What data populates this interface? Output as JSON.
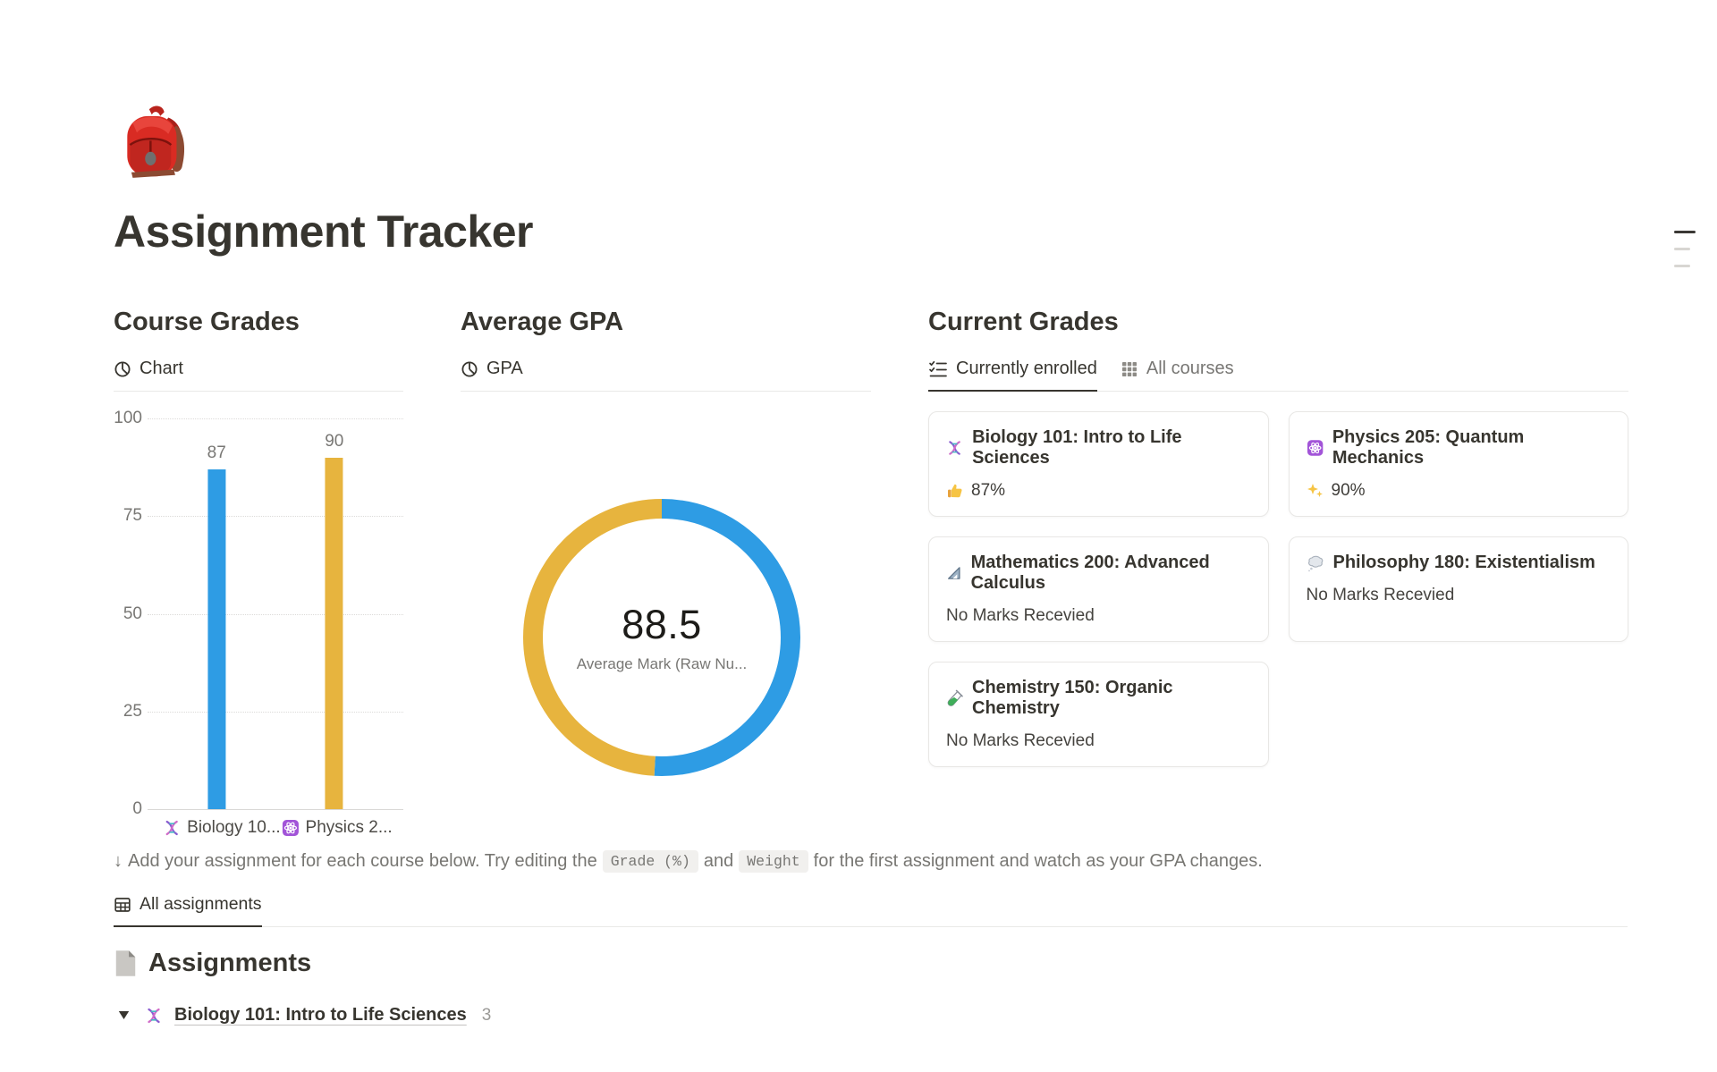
{
  "header": {
    "title": "Assignment Tracker",
    "icon": "red-backpack"
  },
  "course_grades": {
    "heading": "Course Grades",
    "tab_label": "Chart",
    "tab_icon": "pie-chart"
  },
  "average_gpa": {
    "heading": "Average GPA",
    "tab_label": "GPA",
    "tab_icon": "pie-chart"
  },
  "current_grades": {
    "heading": "Current Grades",
    "tabs": [
      {
        "label": "Currently enrolled",
        "icon": "checklist",
        "active": true
      },
      {
        "label": "All courses",
        "icon": "grid",
        "active": false
      }
    ],
    "cards": [
      {
        "icon": "dna",
        "title": "Biology 101: Intro to Life Sciences",
        "mark_icon": "thumbs-up",
        "mark": "87%"
      },
      {
        "icon": "atom",
        "title": "Physics 205: Quantum Mechanics",
        "mark_icon": "sparkles",
        "mark": "90%"
      },
      {
        "icon": "triangular-ruler",
        "title": "Mathematics 200: Advanced Calculus",
        "status": "No Marks Recevied"
      },
      {
        "icon": "thought-balloon",
        "title": "Philosophy 180: Existentialism",
        "status": "No Marks Recevied"
      },
      {
        "icon": "test-tube",
        "title": "Chemistry 150: Organic Chemistry",
        "status": "No Marks Recevied"
      }
    ]
  },
  "chart_data": [
    {
      "type": "bar",
      "title": "Course Grades",
      "categories": [
        "Biology 101",
        "Physics 205"
      ],
      "categories_display": [
        "Biology 10...",
        "Physics 2..."
      ],
      "category_icons": [
        "dna",
        "atom"
      ],
      "values": [
        87,
        90
      ],
      "colors": [
        "#2E9CE4",
        "#E7B43E"
      ],
      "ylim": [
        0,
        100
      ],
      "ytick_labels": [
        "100",
        "75",
        "50",
        "25",
        "0"
      ],
      "grid": true
    },
    {
      "type": "donut",
      "title": "Average GPA",
      "center_value": "88.5",
      "center_label": "Average Mark (Raw Nu...",
      "segments": [
        {
          "value": 90,
          "color": "#2E9CE4"
        },
        {
          "value": 87,
          "color": "#E7B43E"
        }
      ]
    }
  ],
  "note": {
    "arrow": "↓",
    "text_before": "Add your assignment for each course below. Try editing the",
    "code1": "Grade (%)",
    "text_mid": "and",
    "code2": "Weight",
    "text_after": "for the first assignment and watch as your GPA changes."
  },
  "assignments": {
    "tab_label": "All assignments",
    "tab_icon": "table",
    "heading": "Assignments",
    "heading_icon": "page",
    "groups": [
      {
        "icon": "dna",
        "title": "Biology 101: Intro to Life Sciences",
        "count": "3"
      }
    ]
  }
}
